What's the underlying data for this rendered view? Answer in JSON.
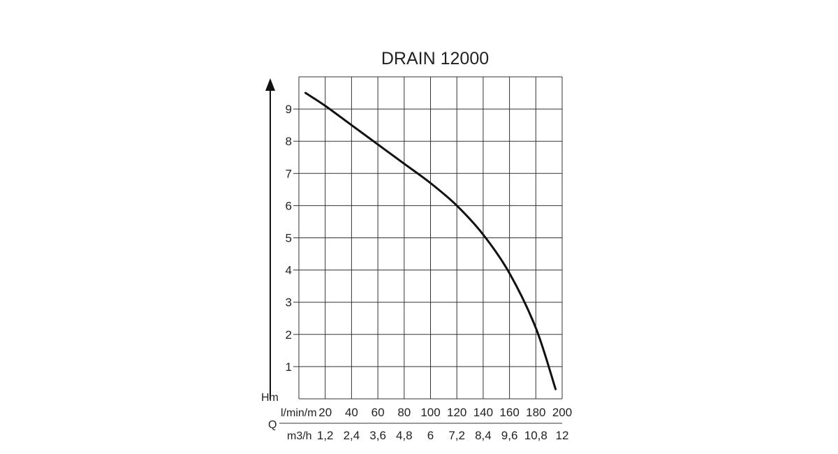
{
  "chart_data": {
    "type": "line",
    "title": "DRAIN 12000",
    "ylabel": "Hm",
    "xlabel": "Q",
    "x_unit_primary": "l/min/m",
    "x_unit_secondary": "m3/h",
    "ylim": [
      0,
      10
    ],
    "xlim": [
      0,
      200
    ],
    "grid": true,
    "yticks": [
      "1",
      "2",
      "3",
      "4",
      "5",
      "6",
      "7",
      "8",
      "9"
    ],
    "xticks_primary": [
      "20",
      "40",
      "60",
      "80",
      "100",
      "120",
      "140",
      "160",
      "180",
      "200"
    ],
    "xticks_secondary": [
      "1,2",
      "2,4",
      "3,6",
      "4,8",
      "6",
      "7,2",
      "8,4",
      "9,6",
      "10,8",
      "12"
    ],
    "series": [
      {
        "x": [
          5,
          20,
          40,
          60,
          80,
          100,
          120,
          140,
          160,
          180,
          195
        ],
        "y": [
          9.5,
          9.1,
          8.5,
          7.9,
          7.3,
          6.7,
          6.0,
          5.1,
          3.9,
          2.2,
          0.3
        ]
      }
    ]
  }
}
